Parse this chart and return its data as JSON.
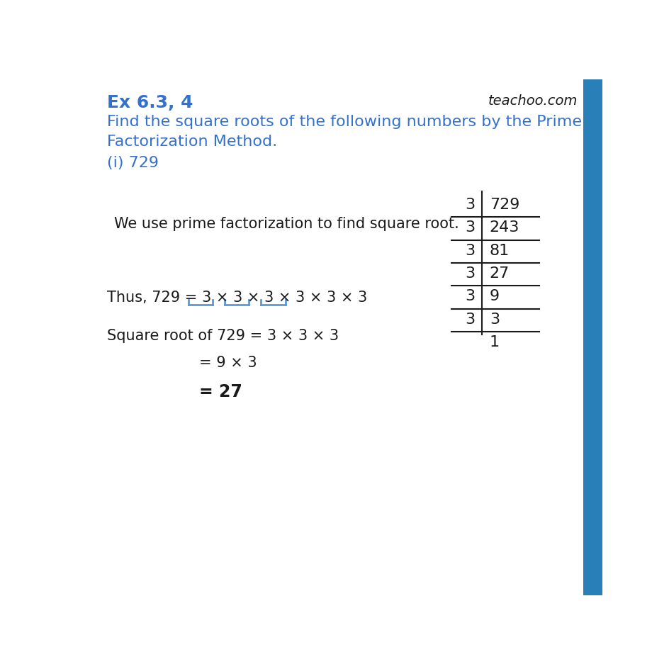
{
  "title": "Ex 6.3, 4",
  "watermark": "teachoo.com",
  "question_line1": "Find the square roots of the following numbers by the Prime",
  "question_line2": "Factorization Method.",
  "part": "(i) 729",
  "explanation": "We use prime factorization to find square root.",
  "thus_text": "Thus, 729 = 3 × 3 × 3 × 3 × 3 × 3",
  "sqrt_line1": "Square root of 729 = 3 × 3 × 3",
  "sqrt_line2": "= 9 × 3",
  "sqrt_line3": "= 27",
  "table_divisors": [
    "3",
    "3",
    "3",
    "3",
    "3",
    "3"
  ],
  "table_dividends": [
    "729",
    "243",
    "81",
    "27",
    "9",
    "3",
    "1"
  ],
  "blue_color": "#3471cd",
  "black": "#1a1a1a",
  "bg_color": "#ffffff",
  "bracket_blue": "#5b9bd5",
  "side_bar_color": "#2980b9"
}
